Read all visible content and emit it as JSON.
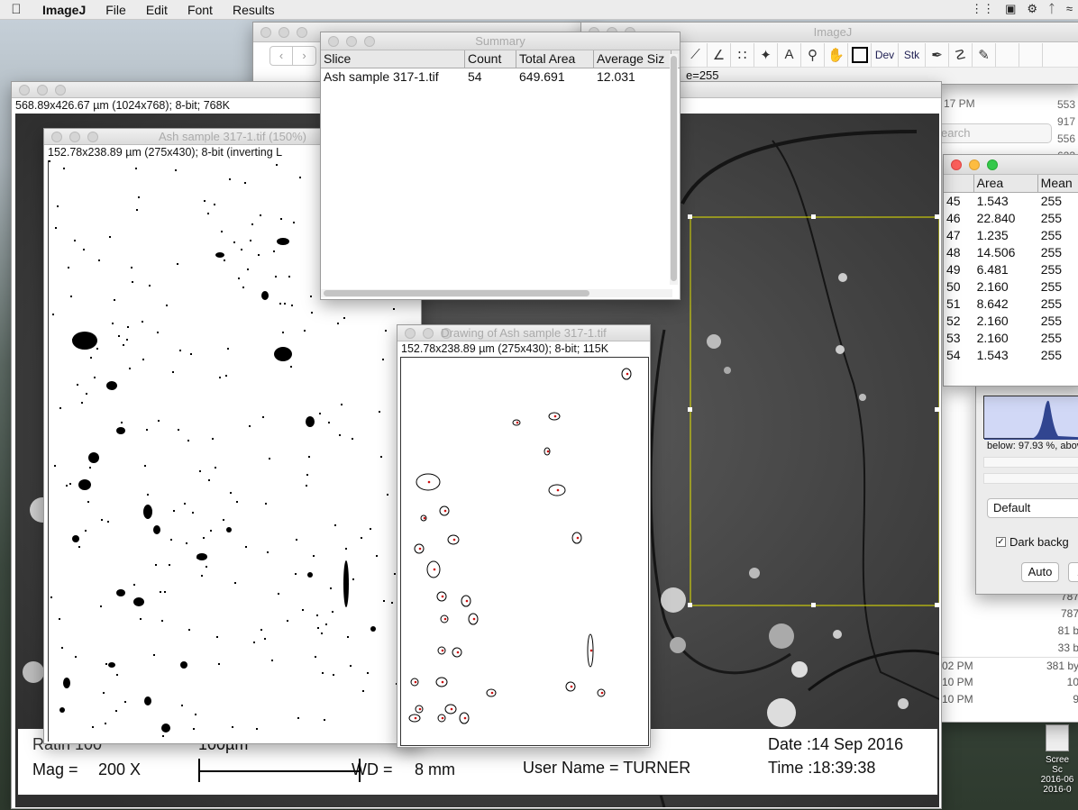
{
  "menubar": {
    "app": "ImageJ",
    "items": [
      "File",
      "Edit",
      "Font",
      "Results"
    ]
  },
  "imagej_main": {
    "title": "ImageJ",
    "tools": [
      "dev",
      "stk"
    ],
    "dev_label": "Dev",
    "stk_label": "Stk",
    "status": "e=255"
  },
  "summary": {
    "title": "Summary",
    "columns": [
      "Slice",
      "Count",
      "Total Area",
      "Average Siz"
    ],
    "rows": [
      [
        "Ash sample 317-1.tif",
        "54",
        "649.691",
        "12.031"
      ]
    ]
  },
  "sem_window": {
    "info": "568.89x426.67 µm (1024x768); 8-bit; 768K",
    "footer": {
      "left_top": "Ratin 100",
      "mag_label": "Mag =",
      "mag_value": "200 X",
      "scale_label": "100µm",
      "wd_label": "WD =",
      "wd_value": "8 mm",
      "user_name": "User Name = TURNER",
      "date": "Date :14 Sep 2016",
      "time": "Time :18:39:38"
    }
  },
  "binary_window": {
    "title": "Ash sample 317-1.tif (150%)",
    "info": "152.78x238.89 µm (275x430); 8-bit (inverting L"
  },
  "drawing_window": {
    "title": "Drawing of Ash sample 317-1.tif",
    "info": "152.78x238.89 µm (275x430); 8-bit; 115K"
  },
  "results": {
    "columns": [
      "",
      "Area",
      "Mean"
    ],
    "rows": [
      [
        "45",
        "1.543",
        "255"
      ],
      [
        "46",
        "22.840",
        "255"
      ],
      [
        "47",
        "1.235",
        "255"
      ],
      [
        "48",
        "14.506",
        "255"
      ],
      [
        "49",
        "6.481",
        "255"
      ],
      [
        "50",
        "2.160",
        "255"
      ],
      [
        "51",
        "8.642",
        "255"
      ],
      [
        "52",
        "2.160",
        "255"
      ],
      [
        "53",
        "2.160",
        "255"
      ],
      [
        "54",
        "1.543",
        "255"
      ]
    ]
  },
  "threshold": {
    "below_text": "below: 97.93 %,  abov",
    "method": "Default",
    "dark_bg": "Dark backg",
    "auto": "Auto",
    "apply": "A"
  },
  "finder": {
    "search_placeholder": "earch",
    "time_top": "17 PM",
    "sizes_top": [
      "553",
      "917",
      "556",
      "623"
    ],
    "bottom_rows": [
      [
        "",
        "787"
      ],
      [
        "",
        "787"
      ],
      [
        "",
        "81 b"
      ],
      [
        "",
        "33 b"
      ],
      [
        "02 PM",
        "381 by"
      ],
      [
        "10 PM",
        "10"
      ],
      [
        "10 PM",
        "9"
      ]
    ],
    "screenshot_label": "Scree",
    "screenshot_sub": "Sc",
    "screenshot_date1": "2016-06",
    "screenshot_date2": "2016-0"
  },
  "colors": {
    "selection": "#e6e600",
    "outline_red": "#cc1111"
  }
}
